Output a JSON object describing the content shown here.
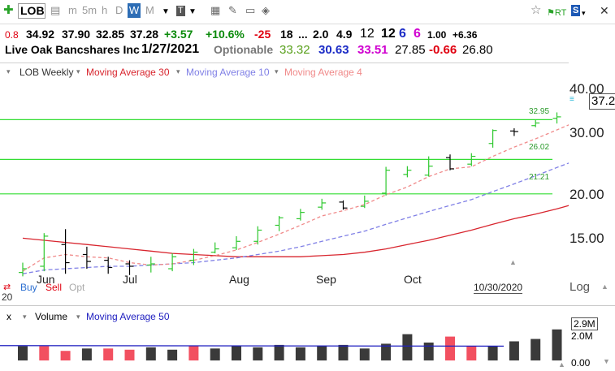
{
  "toolbar": {
    "symbol": "LOB",
    "periods": [
      "m",
      "5m",
      "h",
      "D",
      "W",
      "M"
    ],
    "selected_period": "W"
  },
  "quote": {
    "r1": [
      "0.8",
      "34.92",
      "37.90",
      "32.85",
      "37.28",
      "+3.57",
      "+10.6%",
      "-25",
      "18",
      "...",
      "2.0",
      "4.9",
      "12",
      "12",
      "6",
      "6",
      "1.00",
      "+6.36"
    ],
    "r2": [
      "Live Oak Bancshares Inc",
      "1/27/2021",
      "Optionable",
      "33.32",
      "30.63",
      "33.51",
      "27.85",
      "-0.66",
      "26.80"
    ]
  },
  "legend": {
    "symbol_label": "LOB Weekly",
    "ma30": "Moving Average 30",
    "ma10": "Moving Average 10",
    "ma4": "Moving Average 4"
  },
  "yaxis": [
    "40.00",
    "30.00",
    "20.00",
    "15.00"
  ],
  "xaxis": [
    "Jun",
    "Jul",
    "Aug",
    "Sep",
    "Oct"
  ],
  "last_price": "37.28",
  "levels": [
    "32.95",
    "26.02",
    "21.21"
  ],
  "log_label": "Log",
  "date_label": "10/30/2020",
  "trade": {
    "buy": "Buy",
    "sell": "Sell",
    "opt": "Opt"
  },
  "corner": "20",
  "volume": {
    "close": "x",
    "label": "Volume",
    "ma": "Moving Average 50",
    "y_top": "2.9M",
    "y_mid": "2.0M",
    "y_zero": "0.00"
  },
  "chart_data": {
    "type": "line",
    "title": "LOB Weekly",
    "bars": [
      {
        "o": 13.3,
        "h": 14.1,
        "l": 13.0,
        "c": 13.6
      },
      {
        "o": 13.8,
        "h": 16.8,
        "l": 13.4,
        "c": 16.5
      },
      {
        "o": 15.7,
        "h": 17.2,
        "l": 13.2,
        "c": 14.1
      },
      {
        "o": 14.8,
        "h": 15.5,
        "l": 13.6,
        "c": 14.2
      },
      {
        "o": 14.3,
        "h": 14.6,
        "l": 13.2,
        "c": 13.7
      },
      {
        "o": 14.0,
        "h": 14.3,
        "l": 13.1,
        "c": 13.8
      },
      {
        "o": 13.9,
        "h": 14.6,
        "l": 13.3,
        "c": 14.0
      },
      {
        "o": 13.6,
        "h": 14.9,
        "l": 13.4,
        "c": 14.6
      },
      {
        "o": 14.3,
        "h": 15.3,
        "l": 13.9,
        "c": 15.0
      },
      {
        "o": 15.0,
        "h": 15.9,
        "l": 14.9,
        "c": 15.3
      },
      {
        "o": 15.4,
        "h": 16.5,
        "l": 15.2,
        "c": 16.0
      },
      {
        "o": 16.0,
        "h": 17.5,
        "l": 15.7,
        "c": 17.1
      },
      {
        "o": 17.6,
        "h": 18.6,
        "l": 17.0,
        "c": 18.4
      },
      {
        "o": 18.3,
        "h": 19.4,
        "l": 18.1,
        "c": 19.0
      },
      {
        "o": 19.6,
        "h": 20.6,
        "l": 19.3,
        "c": 20.1
      },
      {
        "o": 20.2,
        "h": 20.4,
        "l": 19.3,
        "c": 19.5
      },
      {
        "o": 19.7,
        "h": 21.0,
        "l": 19.5,
        "c": 20.3
      },
      {
        "o": 21.3,
        "h": 24.9,
        "l": 21.0,
        "c": 24.4
      },
      {
        "o": 23.8,
        "h": 25.0,
        "l": 23.4,
        "c": 24.4
      },
      {
        "o": 23.7,
        "h": 26.5,
        "l": 23.5,
        "c": 25.0
      },
      {
        "o": 26.3,
        "h": 26.8,
        "l": 24.4,
        "c": 24.6
      },
      {
        "o": 25.3,
        "h": 27.0,
        "l": 25.0,
        "c": 26.5
      },
      {
        "o": 28.6,
        "h": 31.1,
        "l": 27.9,
        "c": 30.9
      },
      {
        "o": 30.8,
        "h": 31.3,
        "l": 29.9,
        "c": 30.7
      },
      {
        "o": 31.8,
        "h": 32.9,
        "l": 31.5,
        "c": 32.3
      },
      {
        "o": 33.2,
        "h": 34.4,
        "l": 32.2,
        "c": 33.5
      },
      {
        "o": 34.5,
        "h": 38.2,
        "l": 33.9,
        "c": 37.3
      }
    ],
    "volume_millions": [
      0.6,
      0.6,
      0.4,
      0.5,
      0.5,
      0.45,
      0.55,
      0.45,
      0.6,
      0.5,
      0.6,
      0.55,
      0.65,
      0.55,
      0.6,
      0.65,
      0.5,
      0.7,
      1.1,
      0.75,
      1.0,
      0.6,
      0.6,
      0.8,
      0.9,
      1.3,
      1.6
    ],
    "volume_down": [
      false,
      true,
      true,
      false,
      true,
      true,
      false,
      false,
      true,
      false,
      false,
      false,
      false,
      false,
      false,
      false,
      false,
      false,
      false,
      false,
      true,
      true,
      false,
      false,
      false,
      false,
      false
    ],
    "ma4": [
      13.4,
      14.5,
      14.8,
      14.6,
      14.5,
      14.1,
      13.9,
      14.0,
      14.3,
      14.7,
      15.2,
      15.9,
      16.7,
      17.6,
      18.6,
      19.2,
      19.9,
      21.1,
      22.1,
      23.5,
      24.6,
      24.9,
      26.5,
      28.0,
      29.4,
      31.0,
      32.7
    ],
    "ma10": [
      13.2,
      13.5,
      13.6,
      13.7,
      13.8,
      13.8,
      13.9,
      14.0,
      14.1,
      14.3,
      14.5,
      14.8,
      15.1,
      15.5,
      16.0,
      16.5,
      17.0,
      17.7,
      18.4,
      19.1,
      19.8,
      20.5,
      21.5,
      22.5,
      23.6,
      24.8,
      26.0
    ],
    "ma30": [
      16.3,
      16.1,
      15.9,
      15.7,
      15.5,
      15.3,
      15.1,
      14.9,
      14.8,
      14.7,
      14.6,
      14.6,
      14.6,
      14.6,
      14.7,
      14.8,
      15.0,
      15.3,
      15.7,
      16.1,
      16.6,
      17.1,
      17.7,
      18.3,
      18.8,
      19.4,
      20.1
    ],
    "ylim": [
      12,
      42
    ],
    "yscale": "log",
    "levels": [
      32.95,
      26.02,
      21.21
    ]
  },
  "colors": {
    "up": "#2ec82e",
    "down": "#000000",
    "ma30": "#d8252e",
    "ma10": "#8080e6",
    "ma4": "#f08a8a",
    "level": "#33dd33",
    "vol_up": "#3a3a3a",
    "vol_down": "#f25060",
    "vol_ma": "#2020c0",
    "pos": "#0a8a0a",
    "neg": "#e00010",
    "blue": "#1c2cc6",
    "magenta": "#d000d0"
  }
}
